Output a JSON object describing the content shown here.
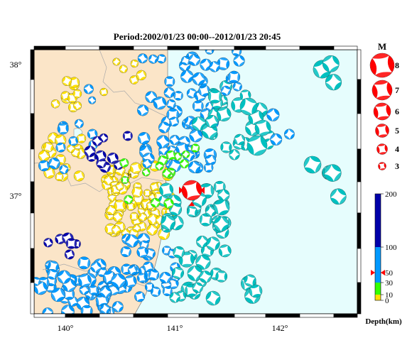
{
  "title": "Period:2002/01/23 00:00--2012/01/23 20:45",
  "axes": {
    "lon_labels": [
      "140°",
      "141°",
      "142°"
    ],
    "lat_labels": [
      "38°",
      "37°"
    ]
  },
  "magnitude_legend": {
    "title": "M",
    "levels": [
      "8",
      "7",
      "6",
      "5",
      "4",
      "3"
    ]
  },
  "depth_scale": {
    "label": "Depth(km)",
    "ticks": [
      "200",
      "100",
      "50",
      "30",
      "10",
      "0"
    ],
    "bands": [
      {
        "from": 0,
        "to": 10,
        "color": "#ffe000"
      },
      {
        "from": 10,
        "to": 30,
        "color": "#33ff00"
      },
      {
        "from": 30,
        "to": 100,
        "color": "#0099ff"
      },
      {
        "from": 100,
        "to": 200,
        "color": "#0000aa"
      }
    ]
  },
  "colors": {
    "land": "#fbe5c8",
    "sea": "#e6fdfd",
    "shallow": "#ffe000",
    "mid": "#33ff00",
    "intermediate": "#0099ff",
    "offshore": "#00c0c0",
    "deep": "#0000aa",
    "mainshock": "#ff0000"
  },
  "mainshock_marker": "?"
}
